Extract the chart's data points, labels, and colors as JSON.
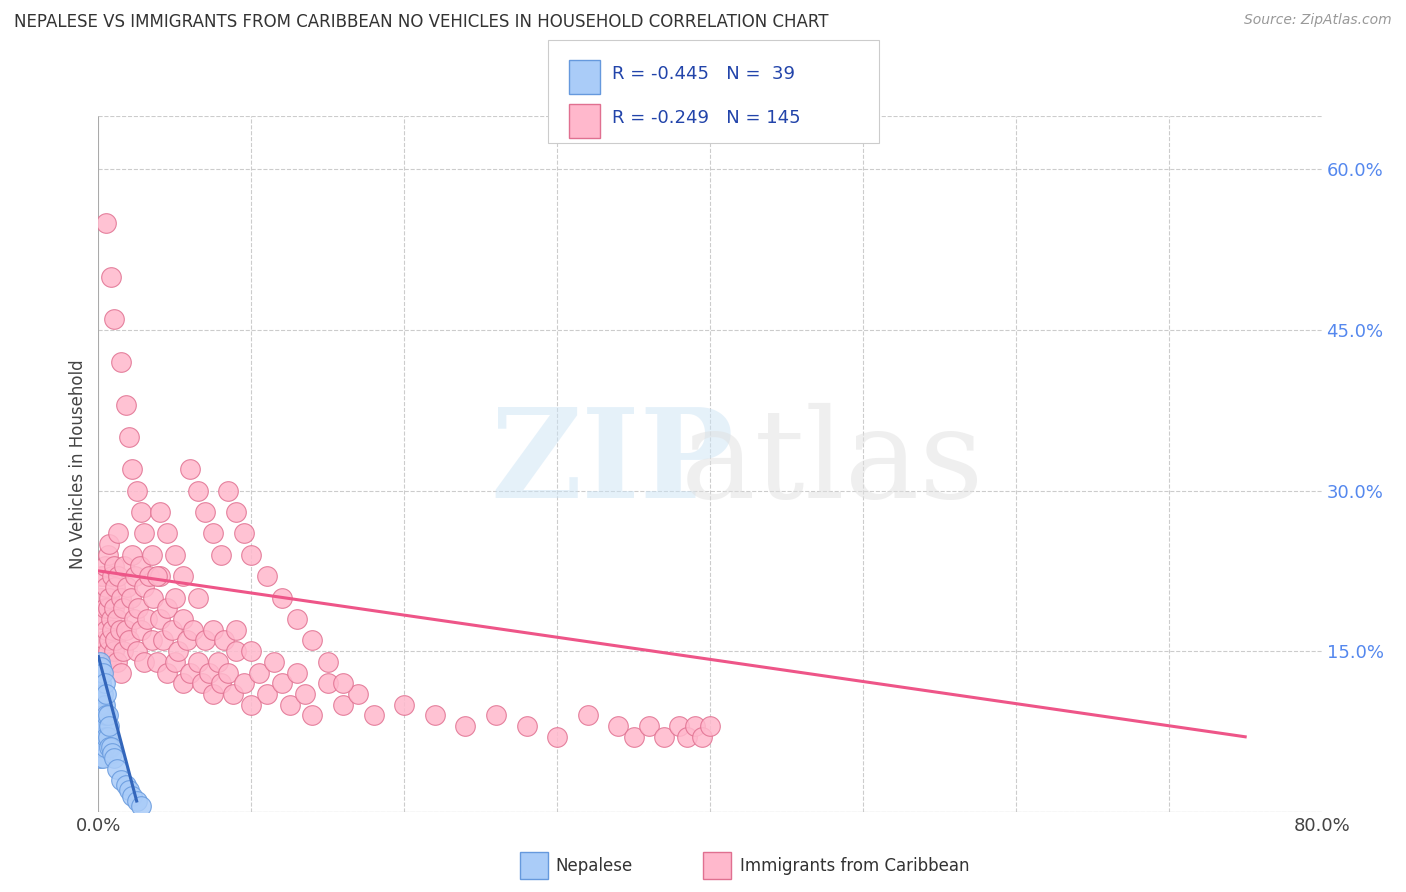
{
  "title": "NEPALESE VS IMMIGRANTS FROM CARIBBEAN NO VEHICLES IN HOUSEHOLD CORRELATION CHART",
  "source": "Source: ZipAtlas.com",
  "ylabel": "No Vehicles in Household",
  "nepalese_R": -0.445,
  "nepalese_N": 39,
  "caribbean_R": -0.249,
  "caribbean_N": 145,
  "nepalese_color": "#aaccf8",
  "nepalese_edge": "#6699dd",
  "caribbean_color": "#ffb8cc",
  "caribbean_edge": "#e07090",
  "nepalese_line_color": "#3366bb",
  "caribbean_line_color": "#ee5588",
  "xlim": [
    0.0,
    0.8
  ],
  "ylim": [
    0.0,
    0.65
  ],
  "ytick_vals": [
    0.0,
    0.15,
    0.3,
    0.45,
    0.6
  ],
  "ytick_labels": [
    "",
    "15.0%",
    "30.0%",
    "45.0%",
    "60.0%"
  ],
  "xtick_vals": [
    0.0,
    0.1,
    0.2,
    0.3,
    0.4,
    0.5,
    0.6,
    0.7,
    0.8
  ],
  "xtick_labels": [
    "0.0%",
    "",
    "",
    "",
    "",
    "",
    "",
    "",
    "80.0%"
  ],
  "nepalese_line_x": [
    0.0,
    0.025
  ],
  "nepalese_line_y": [
    0.145,
    0.01
  ],
  "caribbean_line_x": [
    0.0,
    0.75
  ],
  "caribbean_line_y": [
    0.225,
    0.07
  ],
  "nepalese_pts_x": [
    0.001,
    0.001,
    0.001,
    0.001,
    0.001,
    0.001,
    0.001,
    0.001,
    0.002,
    0.002,
    0.002,
    0.002,
    0.002,
    0.003,
    0.003,
    0.003,
    0.003,
    0.003,
    0.004,
    0.004,
    0.004,
    0.004,
    0.005,
    0.005,
    0.005,
    0.006,
    0.006,
    0.007,
    0.007,
    0.008,
    0.009,
    0.01,
    0.012,
    0.015,
    0.018,
    0.02,
    0.022,
    0.025,
    0.028
  ],
  "nepalese_pts_y": [
    0.05,
    0.07,
    0.09,
    0.1,
    0.11,
    0.12,
    0.13,
    0.14,
    0.06,
    0.08,
    0.1,
    0.12,
    0.135,
    0.05,
    0.07,
    0.09,
    0.11,
    0.13,
    0.06,
    0.08,
    0.1,
    0.12,
    0.07,
    0.09,
    0.11,
    0.07,
    0.09,
    0.06,
    0.08,
    0.06,
    0.055,
    0.05,
    0.04,
    0.03,
    0.025,
    0.02,
    0.015,
    0.01,
    0.005
  ],
  "caribbean_pts_x": [
    0.001,
    0.002,
    0.002,
    0.003,
    0.003,
    0.003,
    0.004,
    0.004,
    0.004,
    0.005,
    0.005,
    0.005,
    0.006,
    0.006,
    0.006,
    0.007,
    0.007,
    0.007,
    0.008,
    0.008,
    0.009,
    0.009,
    0.01,
    0.01,
    0.01,
    0.011,
    0.011,
    0.012,
    0.012,
    0.013,
    0.013,
    0.014,
    0.015,
    0.015,
    0.016,
    0.016,
    0.017,
    0.018,
    0.019,
    0.02,
    0.021,
    0.022,
    0.023,
    0.024,
    0.025,
    0.026,
    0.027,
    0.028,
    0.03,
    0.03,
    0.032,
    0.033,
    0.035,
    0.036,
    0.038,
    0.04,
    0.04,
    0.042,
    0.045,
    0.045,
    0.048,
    0.05,
    0.05,
    0.052,
    0.055,
    0.055,
    0.058,
    0.06,
    0.062,
    0.065,
    0.065,
    0.068,
    0.07,
    0.072,
    0.075,
    0.075,
    0.078,
    0.08,
    0.082,
    0.085,
    0.088,
    0.09,
    0.09,
    0.095,
    0.1,
    0.1,
    0.105,
    0.11,
    0.115,
    0.12,
    0.125,
    0.13,
    0.135,
    0.14,
    0.15,
    0.16,
    0.17,
    0.18,
    0.2,
    0.22,
    0.24,
    0.26,
    0.28,
    0.3,
    0.32,
    0.34,
    0.35,
    0.36,
    0.37,
    0.38,
    0.385,
    0.39,
    0.395,
    0.4,
    0.005,
    0.008,
    0.01,
    0.015,
    0.018,
    0.02,
    0.022,
    0.025,
    0.028,
    0.03,
    0.035,
    0.038,
    0.04,
    0.045,
    0.05,
    0.055,
    0.06,
    0.065,
    0.07,
    0.075,
    0.08,
    0.085,
    0.09,
    0.095,
    0.1,
    0.11,
    0.12,
    0.13,
    0.14,
    0.15,
    0.16
  ],
  "caribbean_pts_y": [
    0.18,
    0.2,
    0.22,
    0.15,
    0.18,
    0.22,
    0.16,
    0.19,
    0.23,
    0.14,
    0.17,
    0.21,
    0.15,
    0.19,
    0.24,
    0.16,
    0.2,
    0.25,
    0.14,
    0.18,
    0.17,
    0.22,
    0.15,
    0.19,
    0.23,
    0.16,
    0.21,
    0.14,
    0.18,
    0.22,
    0.26,
    0.17,
    0.13,
    0.2,
    0.15,
    0.19,
    0.23,
    0.17,
    0.21,
    0.16,
    0.2,
    0.24,
    0.18,
    0.22,
    0.15,
    0.19,
    0.23,
    0.17,
    0.14,
    0.21,
    0.18,
    0.22,
    0.16,
    0.2,
    0.14,
    0.18,
    0.22,
    0.16,
    0.13,
    0.19,
    0.17,
    0.14,
    0.2,
    0.15,
    0.12,
    0.18,
    0.16,
    0.13,
    0.17,
    0.14,
    0.2,
    0.12,
    0.16,
    0.13,
    0.11,
    0.17,
    0.14,
    0.12,
    0.16,
    0.13,
    0.11,
    0.15,
    0.17,
    0.12,
    0.1,
    0.15,
    0.13,
    0.11,
    0.14,
    0.12,
    0.1,
    0.13,
    0.11,
    0.09,
    0.12,
    0.1,
    0.11,
    0.09,
    0.1,
    0.09,
    0.08,
    0.09,
    0.08,
    0.07,
    0.09,
    0.08,
    0.07,
    0.08,
    0.07,
    0.08,
    0.07,
    0.08,
    0.07,
    0.08,
    0.55,
    0.5,
    0.46,
    0.42,
    0.38,
    0.35,
    0.32,
    0.3,
    0.28,
    0.26,
    0.24,
    0.22,
    0.28,
    0.26,
    0.24,
    0.22,
    0.32,
    0.3,
    0.28,
    0.26,
    0.24,
    0.3,
    0.28,
    0.26,
    0.24,
    0.22,
    0.2,
    0.18,
    0.16,
    0.14,
    0.12
  ]
}
